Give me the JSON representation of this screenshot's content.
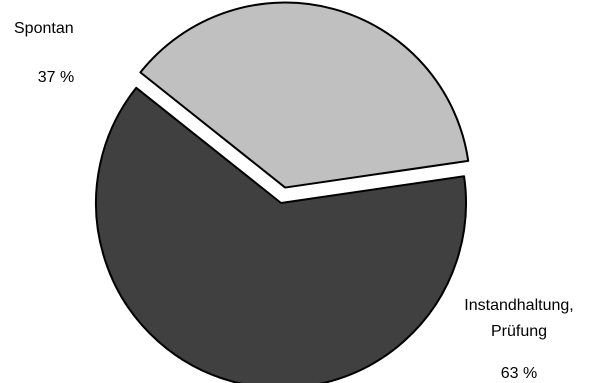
{
  "chart_data": {
    "type": "pie",
    "title": "",
    "slices": [
      {
        "name": "Spontan",
        "value": 37,
        "value_label": "37 %",
        "label_lines": [
          "Spontan"
        ],
        "color": "#c0c0c0",
        "exploded": true
      },
      {
        "name": "Instandhaltung, Prüfung",
        "value": 63,
        "value_label": "63 %",
        "label_lines": [
          "Instandhaltung,",
          "Prüfung"
        ],
        "color": "#404040",
        "exploded": false
      }
    ],
    "legend": "none"
  }
}
